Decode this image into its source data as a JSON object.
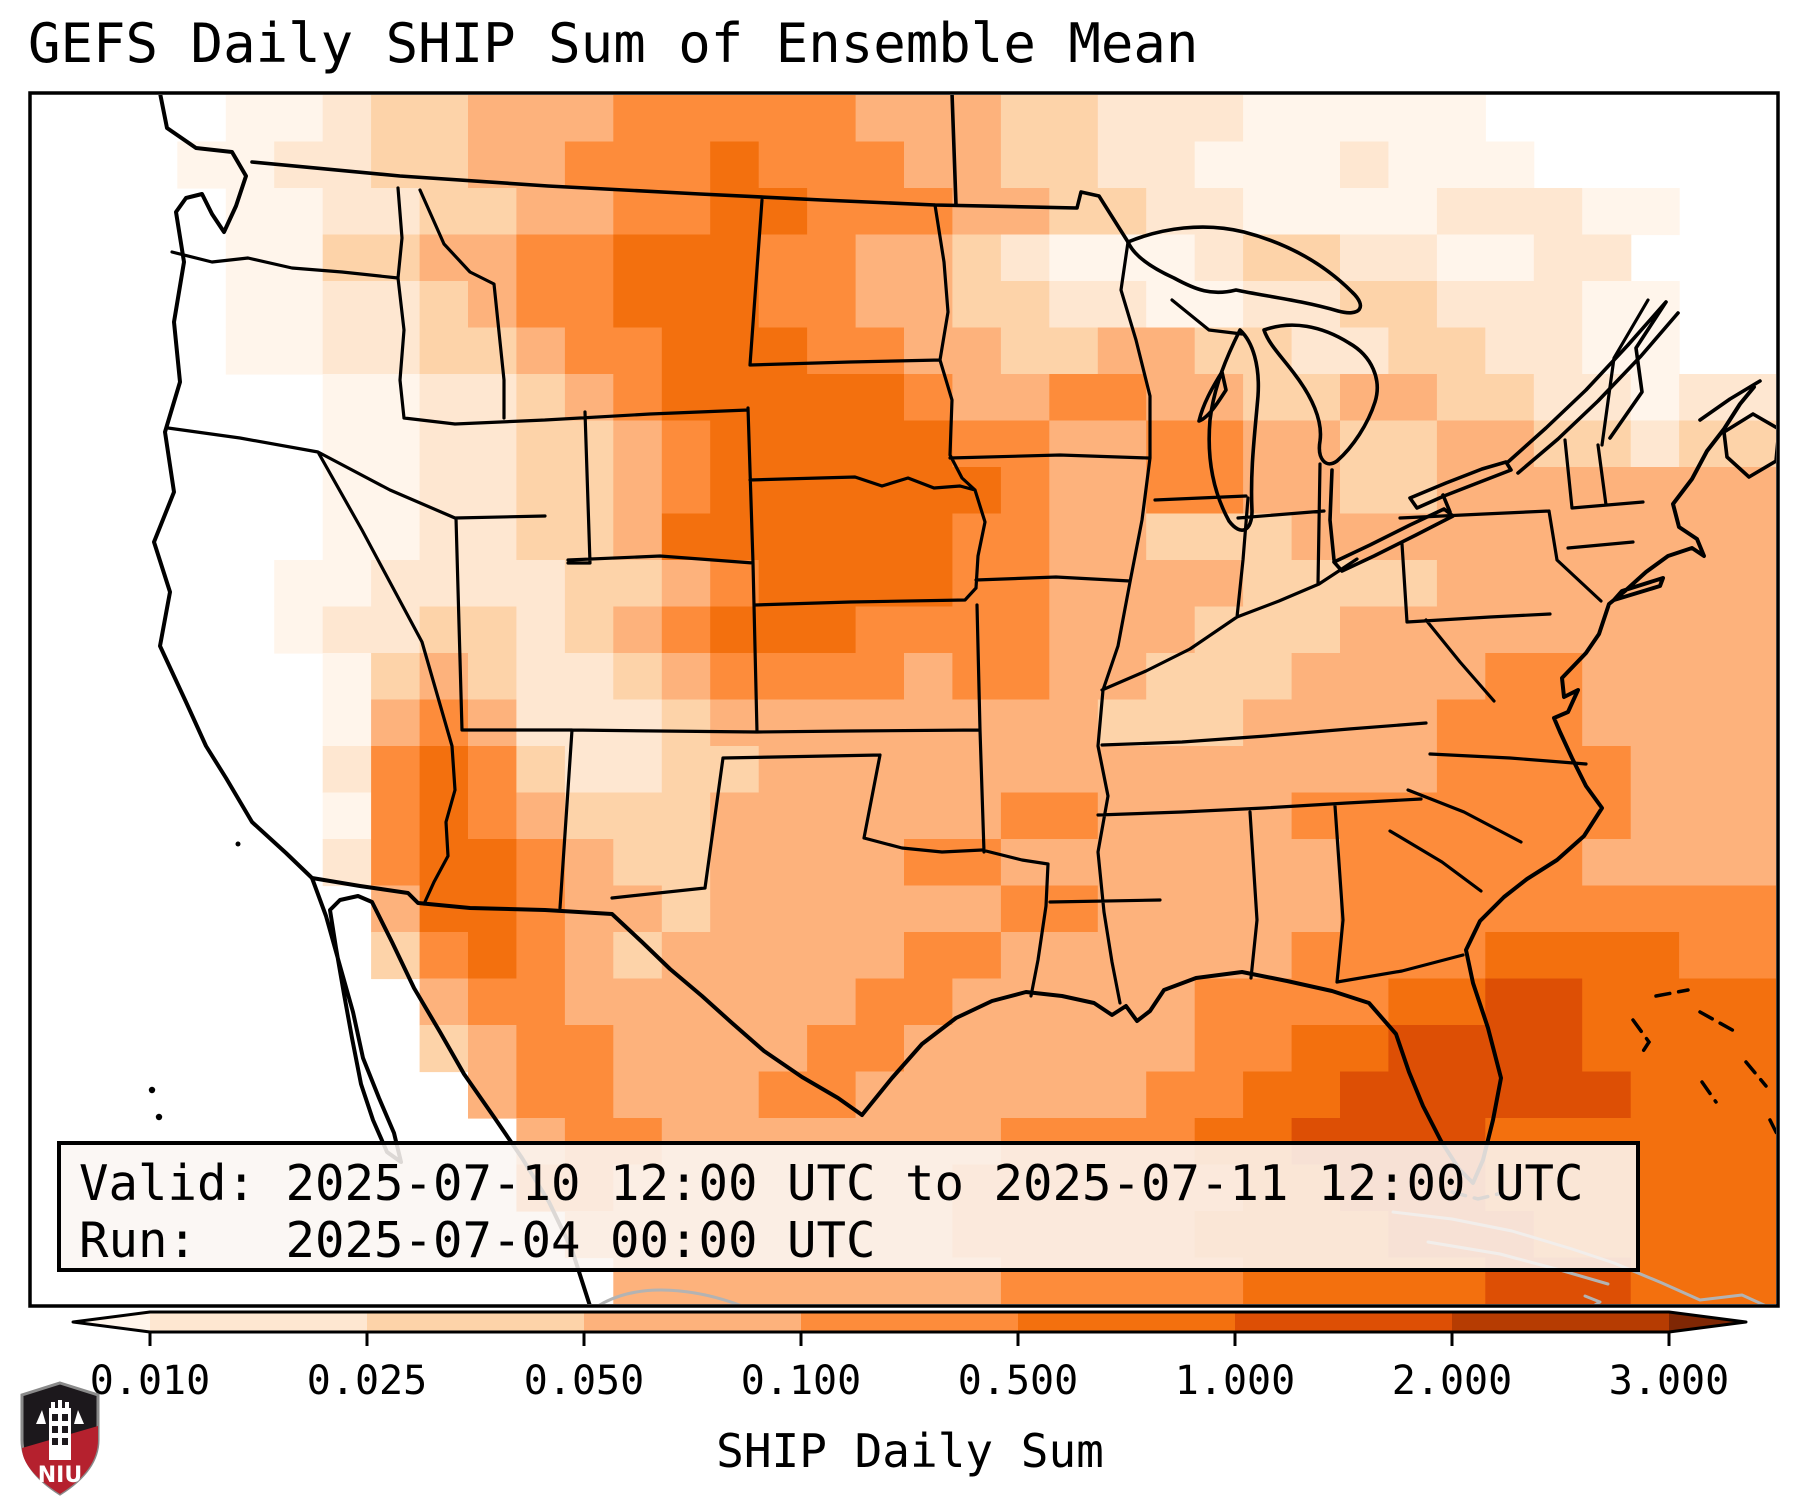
{
  "title": "GEFS Daily SHIP Sum of Ensemble Mean",
  "info_box": {
    "valid_line": "Valid: 2025-07-10 12:00 UTC to 2025-07-11 12:00 UTC",
    "run_line": "Run:   2025-07-04 00:00 UTC"
  },
  "colorbar": {
    "label": "SHIP Daily Sum",
    "tick_labels": [
      "0.010",
      "0.025",
      "0.050",
      "0.100",
      "0.500",
      "1.000",
      "2.000",
      "3.000"
    ],
    "bin_colors": [
      "#fee7d1",
      "#fdd3a9",
      "#fdb27c",
      "#fd8c3b",
      "#f3700e",
      "#dd4f05",
      "#b63c02"
    ],
    "under_color": "#fff5eb",
    "over_color": "#7f2704",
    "outline_color": "#000000"
  },
  "logo": {
    "text": "NIU",
    "shield_dark": "#1c181c",
    "shield_red": "#b5212e",
    "shield_border": "#8a8a8a"
  },
  "map": {
    "field_name": "SHIP daily sum ensemble mean grid",
    "palette": [
      "#ffffff",
      "#fff5eb",
      "#fee7d1",
      "#fdd3a9",
      "#fdb27c",
      "#fd8c3b",
      "#f3700e",
      "#dd4f05",
      "#b63c02"
    ],
    "cols": 36,
    "rows": 26,
    "grid_rows": [
      "000011233444555554443322211111000000",
      "000112233445556555443322111211100000",
      "000011223344556655544332211112221100",
      "000011334455666554432111233221122000",
      "000011223455666554433221122332221100",
      "000011223345566655443344332233221100",
      "000000112234566666544554433443322122",
      "000000112233456666655445544334433233",
      "000000112233456666665445544334444444",
      "000000112233466666655443334444444444",
      "000001122223345666655444433334444444",
      "000001223323456665555444333444444444",
      "000000134322345555455443334444554444",
      "000000145422234444444433344445554444",
      "000000256532233444444444444445555444",
      "000000156543334444445544445555555444",
      "000000256654334444554444444555554444",
      "000000046654434444445544444555555555",
      "000000035654344444554444445555666655",
      "000000004554444445544444555566776666",
      "000000003455444455444444556677776666",
      "000000000455444554444445566777777666",
      "000000000045544444445555667777666666",
      "000000000055444444455555566777666666",
      "000000000004444444455555666677766666",
      "000000000000444444445555566666777666"
    ]
  }
}
